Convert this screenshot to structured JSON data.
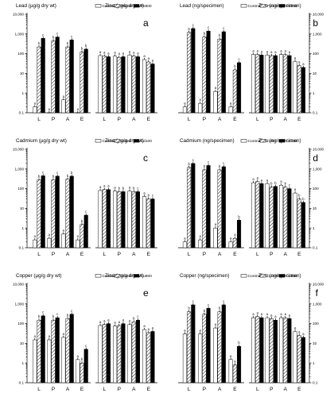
{
  "legend_labels": {
    "control": "Control",
    "pb400": "Pb400",
    "pb800": "Pb800",
    "cd50": "Cd50",
    "cd100": "Cd100",
    "cu400": "Cu400",
    "cu800": "Cu800"
  },
  "colors": {
    "bars": "#000000",
    "hatch": "#000000",
    "background": "#ffffff"
  },
  "chart_data": [
    {
      "id": "a",
      "type": "bar",
      "scale": "log",
      "grid": false,
      "legend": "top-right",
      "title": "Lead (µg/g dry wt)",
      "right_title": "Zinc (µg/g dry wt)",
      "y_ticks": [
        "10,000",
        "1,000",
        "100",
        "10",
        "1",
        "0.1"
      ],
      "right_ticks": [],
      "ylim": [
        0.1,
        10000
      ],
      "categories": [
        "L",
        "P",
        "A",
        "E"
      ],
      "right_categories": [
        "L",
        "P",
        "A",
        "E"
      ],
      "series": [
        {
          "name": "Control",
          "values": [
            0.2,
            0.1,
            0.45,
            0.1
          ]
        },
        {
          "name": "Pb400",
          "values": [
            220,
            450,
            220,
            120
          ]
        },
        {
          "name": "Pb800",
          "values": [
            600,
            700,
            500,
            170
          ]
        }
      ],
      "right_series": [
        {
          "name": "Control",
          "values": [
            80,
            75,
            85,
            50
          ]
        },
        {
          "name": "Pb400",
          "values": [
            75,
            65,
            75,
            38
          ]
        },
        {
          "name": "Pb800",
          "values": [
            70,
            70,
            70,
            30
          ]
        }
      ],
      "letters": [
        [
          "a",
          "a",
          "a",
          "a"
        ],
        [
          "b",
          "b",
          "b",
          "b"
        ],
        [
          "c",
          "c",
          "c",
          "b"
        ]
      ],
      "right_letters": [
        [
          "a",
          "a",
          "a",
          "a"
        ],
        [
          "a",
          "a",
          "a",
          "a"
        ],
        [
          "a",
          "a",
          "a",
          "a"
        ]
      ]
    },
    {
      "id": "b",
      "type": "bar",
      "scale": "log",
      "grid": false,
      "legend": "top-right",
      "title": "Lead (ng/specimen)",
      "right_title": "Zinc (ng/specimen)",
      "y_ticks": [],
      "right_ticks": [
        "10,000",
        "1,000",
        "100",
        "10",
        "1",
        "0.1"
      ],
      "ylim": [
        0.1,
        10000
      ],
      "categories": [
        "L",
        "P",
        "A",
        "E"
      ],
      "right_categories": [
        "L",
        "P",
        "A",
        "E"
      ],
      "series": [
        {
          "name": "Control",
          "values": [
            0.2,
            0.3,
            1.2,
            0.2
          ]
        },
        {
          "name": "Pb400",
          "values": [
            1200,
            700,
            550,
            15
          ]
        },
        {
          "name": "Pb800",
          "values": [
            1900,
            1400,
            1300,
            35
          ]
        }
      ],
      "right_series": [
        {
          "name": "Control",
          "values": [
            90,
            85,
            90,
            40
          ]
        },
        {
          "name": "Pb400",
          "values": [
            90,
            80,
            90,
            25
          ]
        },
        {
          "name": "Pb800",
          "values": [
            85,
            80,
            80,
            20
          ]
        }
      ],
      "letters": [
        [
          "a",
          "a",
          "a",
          "a"
        ],
        [
          "b",
          "b",
          "b",
          "b"
        ],
        [
          "c",
          "c",
          "c",
          "c"
        ]
      ],
      "right_letters": [
        [
          "a",
          "a",
          "a",
          "a"
        ],
        [
          "a",
          "a",
          "a",
          "a"
        ],
        [
          "a",
          "a",
          "a",
          "a"
        ]
      ]
    },
    {
      "id": "c",
      "type": "bar",
      "scale": "log",
      "grid": false,
      "legend": "top-right",
      "title": "Cadmium (µg/g dry wt)",
      "right_title": "Zinc (µg/g dry wt)",
      "y_ticks": [
        "10,000",
        "1,000",
        "100",
        "10",
        "1",
        "0.1"
      ],
      "right_ticks": [],
      "ylim": [
        0.1,
        10000
      ],
      "categories": [
        "L",
        "P",
        "A",
        "E"
      ],
      "right_categories": [
        "L",
        "P",
        "A",
        "E"
      ],
      "series": [
        {
          "name": "Control",
          "values": [
            0.25,
            0.3,
            0.5,
            0.25
          ]
        },
        {
          "name": "Cd50",
          "values": [
            280,
            280,
            300,
            1.5
          ]
        },
        {
          "name": "Cd100",
          "values": [
            450,
            430,
            430,
            4.5
          ]
        }
      ],
      "right_series": [
        {
          "name": "Control",
          "values": [
            80,
            75,
            75,
            40
          ]
        },
        {
          "name": "Cd50",
          "values": [
            90,
            70,
            70,
            30
          ]
        },
        {
          "name": "Cd100",
          "values": [
            90,
            70,
            70,
            30
          ]
        }
      ],
      "letters": [
        [
          "a",
          "a",
          "a",
          "a"
        ],
        [
          "b",
          "b",
          "b",
          "b"
        ],
        [
          "c",
          "c",
          "b",
          "c"
        ]
      ],
      "right_letters": [
        [
          "a",
          "a",
          "a",
          "a"
        ],
        [
          "a",
          "b",
          "b",
          "b"
        ],
        [
          "a",
          "b",
          "c",
          "c"
        ]
      ]
    },
    {
      "id": "d",
      "type": "bar",
      "scale": "log",
      "grid": false,
      "legend": "top-right",
      "title": "Cadmium (ng/specimen)",
      "right_title": "Zinc (ng/specimen)",
      "y_ticks": [],
      "right_ticks": [
        "10,000",
        "1,000",
        "100",
        "10",
        "1",
        "0.1"
      ],
      "ylim": [
        0.1,
        10000
      ],
      "categories": [
        "L",
        "P",
        "A",
        "E"
      ],
      "right_categories": [
        "L",
        "P",
        "A",
        "E"
      ],
      "series": [
        {
          "name": "Control",
          "values": [
            0.2,
            0.25,
            1.0,
            0.2
          ]
        },
        {
          "name": "Cd50",
          "values": [
            1200,
            900,
            900,
            0.3
          ]
        },
        {
          "name": "Cd100",
          "values": [
            1900,
            1500,
            1300,
            2.5
          ]
        }
      ],
      "right_series": [
        {
          "name": "Control",
          "values": [
            200,
            180,
            150,
            60
          ]
        },
        {
          "name": "Cd50",
          "values": [
            230,
            120,
            120,
            30
          ]
        },
        {
          "name": "Cd100",
          "values": [
            180,
            130,
            100,
            20
          ]
        }
      ],
      "letters": [
        [
          "a",
          "a",
          "a",
          "a"
        ],
        [
          "b",
          "b",
          "b",
          "a"
        ],
        [
          "c",
          "c",
          "c",
          "b"
        ]
      ],
      "right_letters": [
        [
          "a",
          "a",
          "a",
          "a"
        ],
        [
          "a",
          "b",
          "b",
          "b"
        ],
        [
          "a",
          "b",
          "c",
          "b"
        ]
      ]
    },
    {
      "id": "e",
      "type": "bar",
      "scale": "log",
      "grid": false,
      "legend": "top-right",
      "title": "Copper (µg/g dry wt)",
      "right_title": "Zinc (µg/g dry wt)",
      "y_ticks": [
        "10,000",
        "1,000",
        "100",
        "10",
        "1",
        "0.1"
      ],
      "right_ticks": [],
      "ylim": [
        0.1,
        10000
      ],
      "categories": [
        "L",
        "P",
        "A",
        "E"
      ],
      "right_categories": [
        "L",
        "P",
        "A",
        "E"
      ],
      "series": [
        {
          "name": "Control",
          "values": [
            15,
            15,
            20,
            1.5
          ]
        },
        {
          "name": "Cu400",
          "values": [
            150,
            150,
            180,
            1.0
          ]
        },
        {
          "name": "Cu800",
          "values": [
            250,
            200,
            300,
            5.0
          ]
        }
      ],
      "right_series": [
        {
          "name": "Control",
          "values": [
            80,
            75,
            90,
            50
          ]
        },
        {
          "name": "Cu400",
          "values": [
            90,
            80,
            120,
            35
          ]
        },
        {
          "name": "Cu800",
          "values": [
            100,
            100,
            150,
            40
          ]
        }
      ],
      "letters": [
        [
          "a",
          "a",
          "a",
          "a"
        ],
        [
          "b",
          "b",
          "b",
          "b"
        ],
        [
          "c",
          "c",
          "c",
          "c"
        ]
      ],
      "right_letters": [
        [
          "a",
          "a",
          "a",
          "a"
        ],
        [
          "a",
          "a",
          "b",
          "a"
        ],
        [
          "a",
          "a",
          "c",
          "a"
        ]
      ]
    },
    {
      "id": "f",
      "type": "bar",
      "scale": "log",
      "grid": false,
      "legend": "top-right",
      "title": "Copper (ng/specimen)",
      "right_title": "Zinc (ng/specimen)",
      "y_ticks": [],
      "right_ticks": [
        "10,000",
        "1,000",
        "100",
        "10",
        "1",
        "0.1"
      ],
      "ylim": [
        0.1,
        10000
      ],
      "categories": [
        "L",
        "P",
        "A",
        "E"
      ],
      "right_categories": [
        "L",
        "P",
        "A",
        "E"
      ],
      "series": [
        {
          "name": "Control",
          "values": [
            30,
            30,
            60,
            1.5
          ]
        },
        {
          "name": "Cu400",
          "values": [
            400,
            300,
            400,
            0.8
          ]
        },
        {
          "name": "Cu800",
          "values": [
            900,
            600,
            900,
            7.0
          ]
        }
      ],
      "right_series": [
        {
          "name": "Control",
          "values": [
            200,
            200,
            200,
            40
          ]
        },
        {
          "name": "Cu400",
          "values": [
            230,
            180,
            200,
            25
          ]
        },
        {
          "name": "Cu800",
          "values": [
            200,
            150,
            180,
            20
          ]
        }
      ],
      "letters": [
        [
          "a",
          "a",
          "a",
          "a"
        ],
        [
          "b",
          "b",
          "b",
          "a"
        ],
        [
          "c",
          "c",
          "c",
          "b"
        ]
      ],
      "right_letters": [
        [
          "a",
          "a",
          "a",
          "a"
        ],
        [
          "a",
          "a",
          "a",
          "a"
        ],
        [
          "a",
          "a",
          "a",
          "a"
        ]
      ]
    }
  ]
}
